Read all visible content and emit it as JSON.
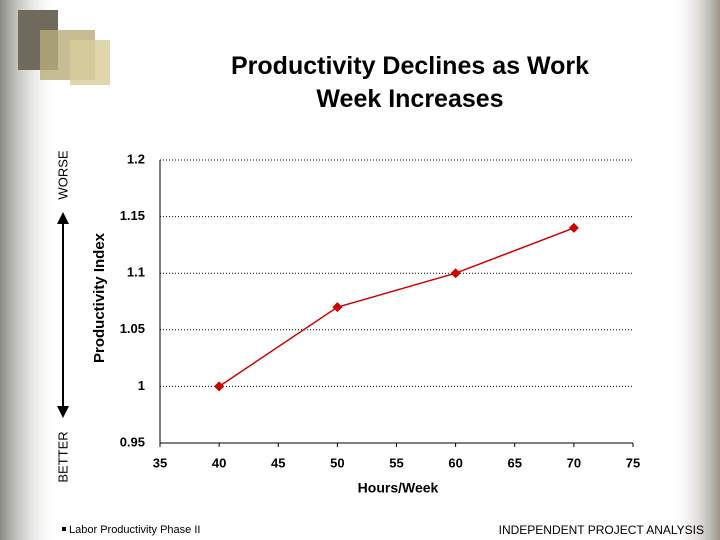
{
  "chart_data": {
    "type": "line",
    "title": "Productivity Declines as Work Week Increases",
    "x_label": "Hours/Week",
    "y_label": "Productivity Index",
    "annotations": {
      "top": "WORSE",
      "bottom": "BETTER"
    },
    "footer_left": "Labor Productivity Phase II",
    "footer_right": "INDEPENDENT PROJECT ANALYSIS",
    "x": [
      40,
      50,
      60,
      70
    ],
    "series": [
      {
        "name": "Productivity Index",
        "color": "#cc0000",
        "values": [
          1,
          1.07,
          1.1,
          1.14
        ]
      }
    ],
    "xlim": [
      35,
      75
    ],
    "xticks": [
      35,
      40,
      45,
      50,
      55,
      60,
      65,
      70,
      75
    ],
    "ylim": [
      0.95,
      1.2
    ],
    "yticks": [
      0.95,
      1,
      1.05,
      1.1,
      1.15,
      1.2
    ],
    "grid": true
  }
}
